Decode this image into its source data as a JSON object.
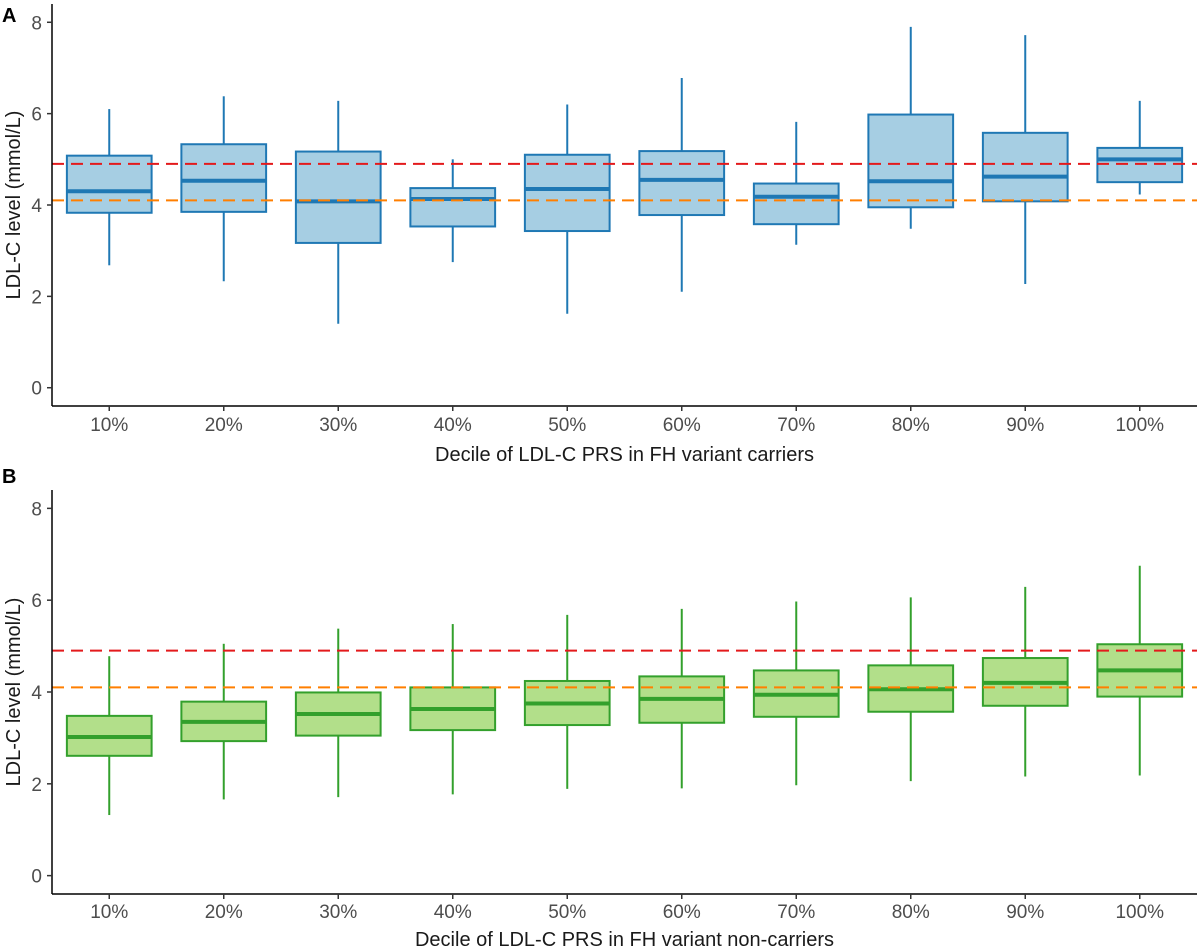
{
  "chart_data": [
    {
      "type": "box",
      "panel_label": "A",
      "xlabel": "Decile of LDL-C PRS in FH variant carriers",
      "ylabel": "LDL-C level (mmol/L)",
      "ylim": [
        -0.4,
        8.4
      ],
      "yticks": [
        0,
        2,
        4,
        6,
        8
      ],
      "grid": false,
      "colors": {
        "fill": "#a6cee3",
        "line": "#1f78b4"
      },
      "categories": [
        "10%",
        "20%",
        "30%",
        "40%",
        "50%",
        "60%",
        "70%",
        "80%",
        "90%",
        "100%"
      ],
      "boxes": [
        {
          "min": 2.68,
          "q1": 3.83,
          "median": 4.3,
          "q3": 5.08,
          "max": 6.1
        },
        {
          "min": 2.33,
          "q1": 3.85,
          "median": 4.53,
          "q3": 5.33,
          "max": 6.38
        },
        {
          "min": 1.4,
          "q1": 3.17,
          "median": 4.08,
          "q3": 5.17,
          "max": 6.28
        },
        {
          "min": 2.75,
          "q1": 3.53,
          "median": 4.13,
          "q3": 4.37,
          "max": 5.0
        },
        {
          "min": 1.62,
          "q1": 3.43,
          "median": 4.35,
          "q3": 5.1,
          "max": 6.2
        },
        {
          "min": 2.1,
          "q1": 3.78,
          "median": 4.55,
          "q3": 5.18,
          "max": 6.78
        },
        {
          "min": 3.13,
          "q1": 3.58,
          "median": 4.18,
          "q3": 4.47,
          "max": 5.82
        },
        {
          "min": 3.48,
          "q1": 3.95,
          "median": 4.52,
          "q3": 5.98,
          "max": 7.9
        },
        {
          "min": 2.27,
          "q1": 4.08,
          "median": 4.62,
          "q3": 5.58,
          "max": 7.72
        },
        {
          "min": 4.23,
          "q1": 4.5,
          "median": 5.0,
          "q3": 5.25,
          "max": 6.28
        }
      ],
      "reference_lines": [
        {
          "y": 4.9,
          "color": "#e31a1c"
        },
        {
          "y": 4.1,
          "color": "#ff7f00"
        }
      ]
    },
    {
      "type": "box",
      "panel_label": "B",
      "xlabel": "Decile of LDL-C PRS in FH variant non-carriers",
      "ylabel": "LDL-C level (mmol/L)",
      "ylim": [
        -0.4,
        8.4
      ],
      "yticks": [
        0,
        2,
        4,
        6,
        8
      ],
      "grid": false,
      "colors": {
        "fill": "#b2df8a",
        "line": "#33a02c"
      },
      "categories": [
        "10%",
        "20%",
        "30%",
        "40%",
        "50%",
        "60%",
        "70%",
        "80%",
        "90%",
        "100%"
      ],
      "boxes": [
        {
          "min": 1.32,
          "q1": 2.61,
          "median": 3.02,
          "q3": 3.48,
          "max": 4.78
        },
        {
          "min": 1.66,
          "q1": 2.93,
          "median": 3.35,
          "q3": 3.79,
          "max": 5.05
        },
        {
          "min": 1.71,
          "q1": 3.05,
          "median": 3.52,
          "q3": 3.99,
          "max": 5.38
        },
        {
          "min": 1.77,
          "q1": 3.17,
          "median": 3.63,
          "q3": 4.1,
          "max": 5.48
        },
        {
          "min": 1.89,
          "q1": 3.28,
          "median": 3.75,
          "q3": 4.24,
          "max": 5.68
        },
        {
          "min": 1.9,
          "q1": 3.33,
          "median": 3.85,
          "q3": 4.34,
          "max": 5.81
        },
        {
          "min": 1.97,
          "q1": 3.46,
          "median": 3.94,
          "q3": 4.47,
          "max": 5.97
        },
        {
          "min": 2.06,
          "q1": 3.57,
          "median": 4.06,
          "q3": 4.58,
          "max": 6.06
        },
        {
          "min": 2.16,
          "q1": 3.7,
          "median": 4.2,
          "q3": 4.74,
          "max": 6.29
        },
        {
          "min": 2.18,
          "q1": 3.9,
          "median": 4.47,
          "q3": 5.04,
          "max": 6.75
        }
      ],
      "reference_lines": [
        {
          "y": 4.9,
          "color": "#e31a1c"
        },
        {
          "y": 4.1,
          "color": "#ff7f00"
        }
      ]
    }
  ]
}
